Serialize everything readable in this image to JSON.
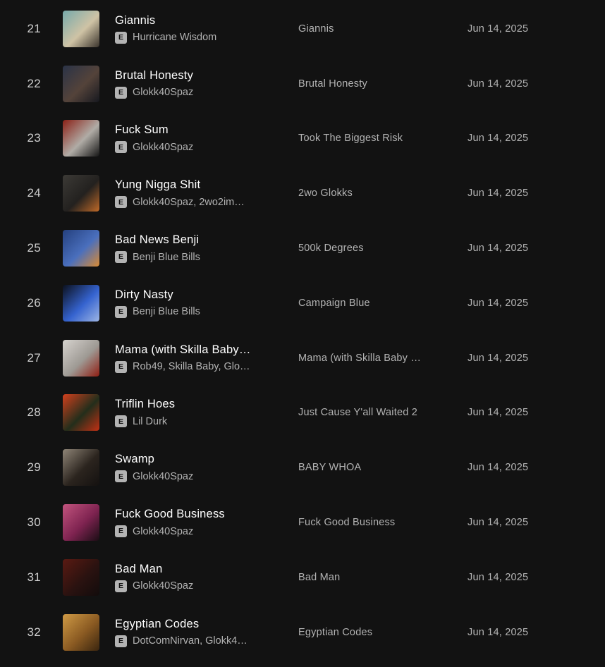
{
  "explicit_badge": "E",
  "colors": {
    "background": "#121212",
    "title_text": "#ffffff",
    "subdued_text": "#b3b3b3",
    "index_text": "#cfcfcf",
    "badge_bg": "#b3b3b3",
    "badge_text": "#121212"
  },
  "tracks": [
    {
      "index": "21",
      "title": "Giannis",
      "artists": "Hurricane Wisdom",
      "album": "Giannis",
      "date_added": "Jun 14, 2025",
      "art": [
        "#76a9ab",
        "#cfc3a5",
        "#3a332c"
      ]
    },
    {
      "index": "22",
      "title": "Brutal Honesty",
      "artists": "Glokk40Spaz",
      "album": "Brutal Honesty",
      "date_added": "Jun 14, 2025",
      "art": [
        "#2a3347",
        "#54433a",
        "#16181f"
      ]
    },
    {
      "index": "23",
      "title": "Fuck Sum",
      "artists": "Glokk40Spaz",
      "album": "Took The Biggest Risk",
      "date_added": "Jun 14, 2025",
      "art": [
        "#8a2016",
        "#b0aca6",
        "#141414"
      ]
    },
    {
      "index": "24",
      "title": "Yung Nigga Shit",
      "artists": "Glokk40Spaz, 2wo2im…",
      "album": "2wo Glokks",
      "date_added": "Jun 14, 2025",
      "art": [
        "#3c3a36",
        "#23211f",
        "#c06a28"
      ]
    },
    {
      "index": "25",
      "title": "Bad News Benji",
      "artists": "Benji Blue Bills",
      "album": "500k Degrees",
      "date_added": "Jun 14, 2025",
      "art": [
        "#24407e",
        "#4a6fbd",
        "#d98a33"
      ]
    },
    {
      "index": "26",
      "title": "Dirty Nasty",
      "artists": "Benji Blue Bills",
      "album": "Campaign Blue",
      "date_added": "Jun 14, 2025",
      "art": [
        "#0b101c",
        "#3563cf",
        "#9db5e4"
      ]
    },
    {
      "index": "27",
      "title": "Mama (with Skilla Baby…",
      "artists": "Rob49, Skilla Baby, Glo…",
      "album": "Mama (with Skilla Baby …",
      "date_added": "Jun 14, 2025",
      "art": [
        "#d6d3ce",
        "#9e9a94",
        "#8f1d12"
      ]
    },
    {
      "index": "28",
      "title": "Triflin Hoes",
      "artists": "Lil Durk",
      "album": "Just Cause Y'all Waited 2",
      "date_added": "Jun 14, 2025",
      "art": [
        "#d2401d",
        "#232e1b",
        "#c23014"
      ]
    },
    {
      "index": "29",
      "title": "Swamp",
      "artists": "Glokk40Spaz",
      "album": "BABY WHOA",
      "date_added": "Jun 14, 2025",
      "art": [
        "#8f8577",
        "#2b241e",
        "#141110"
      ]
    },
    {
      "index": "30",
      "title": "Fuck Good Business",
      "artists": "Glokk40Spaz",
      "album": "Fuck Good Business",
      "date_added": "Jun 14, 2025",
      "art": [
        "#c2547e",
        "#7e2350",
        "#1a0d14"
      ]
    },
    {
      "index": "31",
      "title": "Bad Man",
      "artists": "Glokk40Spaz",
      "album": "Bad Man",
      "date_added": "Jun 14, 2025",
      "art": [
        "#5a1a12",
        "#2a1210",
        "#120c0c"
      ]
    },
    {
      "index": "32",
      "title": "Egyptian Codes",
      "artists": "DotComNirvan, Glokk4…",
      "album": "Egyptian Codes",
      "date_added": "Jun 14, 2025",
      "art": [
        "#cf9a45",
        "#8a5a22",
        "#3a250f"
      ]
    }
  ]
}
